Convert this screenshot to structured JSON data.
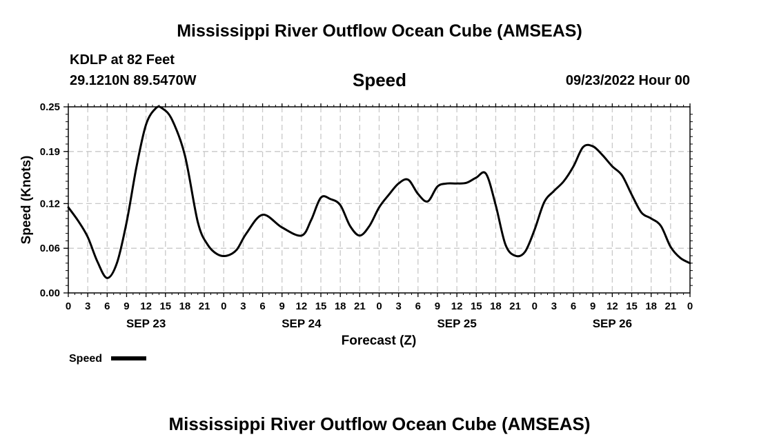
{
  "page": {
    "title": "Mississippi River Outflow Ocean Cube (AMSEAS)",
    "station": "KDLP at 82 Feet",
    "coords": "29.1210N  89.5470W",
    "variable_title": "Speed",
    "datetime": "09/23/2022 Hour 00",
    "footer_title": "Mississippi River Outflow Ocean Cube (AMSEAS)"
  },
  "chart_data": {
    "type": "line",
    "title": "Speed",
    "xlabel": "Forecast (Z)",
    "ylabel": "Speed (Knots)",
    "xlim": [
      0,
      96
    ],
    "ylim": [
      0,
      0.25
    ],
    "yticks": [
      0,
      0.06,
      0.12,
      0.19,
      0.25
    ],
    "ytick_labels": [
      "0.00",
      "0.06",
      "0.12",
      "0.19",
      "0.25"
    ],
    "xtick_labels": [
      "0",
      "3",
      "6",
      "9",
      "12",
      "15",
      "18",
      "21",
      "0",
      "3",
      "6",
      "9",
      "12",
      "15",
      "18",
      "21",
      "0",
      "3",
      "6",
      "9",
      "12",
      "15",
      "18",
      "21",
      "0",
      "3",
      "6",
      "9",
      "12",
      "15",
      "18",
      "21",
      "0"
    ],
    "day_labels": [
      "SEP 23",
      "SEP 24",
      "SEP 25",
      "SEP 26"
    ],
    "grid": true,
    "legend": {
      "label": "Speed",
      "placement": "bottom-left"
    },
    "series": [
      {
        "name": "Speed",
        "color": "#000000",
        "x": [
          0,
          1.5,
          3,
          4.5,
          6,
          7.5,
          9,
          10.5,
          12,
          13.5,
          14.5,
          16,
          18,
          20,
          21.5,
          23,
          24.5,
          26,
          27.5,
          30,
          33,
          36,
          37.5,
          39,
          40.5,
          42,
          43.5,
          45,
          46.5,
          48,
          49.5,
          51,
          52.5,
          54,
          55.5,
          57,
          58.5,
          60,
          61.5,
          63,
          64.5,
          66,
          67.5,
          69,
          70.5,
          72,
          73.5,
          75,
          76.5,
          78,
          79.5,
          81,
          82.5,
          84,
          85.5,
          87,
          88.5,
          90,
          91.5,
          93,
          94.5,
          96
        ],
        "values": [
          0.115,
          0.097,
          0.075,
          0.042,
          0.02,
          0.04,
          0.095,
          0.168,
          0.226,
          0.248,
          0.248,
          0.233,
          0.185,
          0.095,
          0.065,
          0.052,
          0.05,
          0.058,
          0.08,
          0.105,
          0.088,
          0.077,
          0.098,
          0.128,
          0.126,
          0.118,
          0.09,
          0.077,
          0.09,
          0.115,
          0.132,
          0.147,
          0.152,
          0.133,
          0.123,
          0.143,
          0.147,
          0.147,
          0.148,
          0.155,
          0.16,
          0.118,
          0.065,
          0.05,
          0.055,
          0.085,
          0.122,
          0.137,
          0.15,
          0.17,
          0.196,
          0.197,
          0.185,
          0.17,
          0.158,
          0.132,
          0.108,
          0.1,
          0.09,
          0.062,
          0.047,
          0.04
        ]
      }
    ]
  }
}
